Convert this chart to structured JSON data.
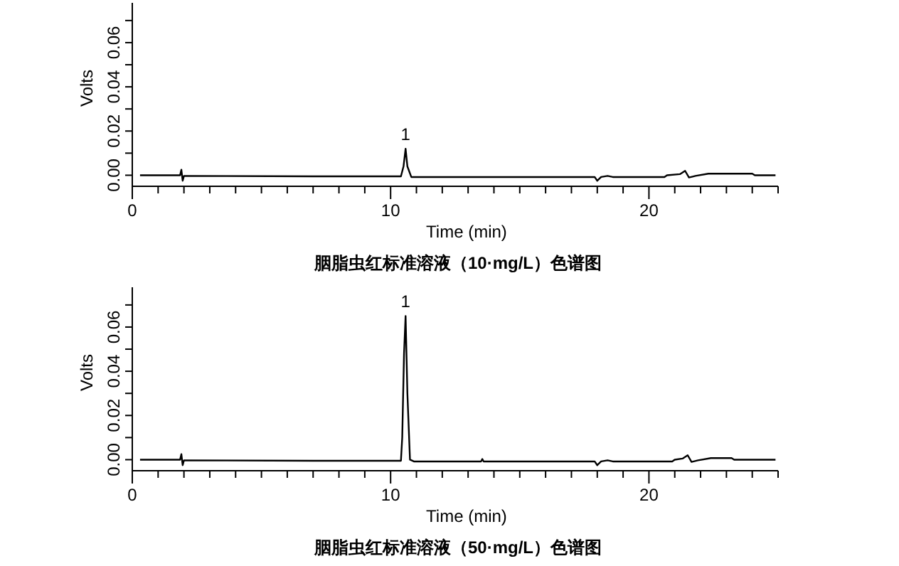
{
  "chart_data": [
    {
      "type": "line",
      "title": "胭脂虫红标准溶液（10·mg/L）色谱图",
      "xlabel": "Time (min)",
      "ylabel": "Volts",
      "series": [
        {
          "color": "#000000",
          "x": [
            0.3,
            1.85,
            1.9,
            1.95,
            2.0,
            7,
            10.4,
            10.5,
            10.58,
            10.65,
            10.8,
            17.9,
            18.0,
            18.15,
            18.4,
            18.6,
            20.6,
            20.7,
            21.2,
            21.4,
            21.55,
            21.8,
            22.3,
            24.0,
            24.1,
            24.9
          ],
          "values": [
            0,
            0,
            0.0025,
            -0.0025,
            -0.0003,
            -0.0005,
            -0.0005,
            0.004,
            0.012,
            0.004,
            -0.0008,
            -0.0008,
            -0.0025,
            -0.0008,
            -0.0003,
            -0.0008,
            -0.0008,
            0,
            0.0005,
            0.002,
            -0.001,
            -0.0003,
            0.0007,
            0.0007,
            0,
            0
          ]
        }
      ],
      "annotations": [
        {
          "text": "1",
          "x": 10.58,
          "y": 0.012
        }
      ],
      "xlim": [
        0,
        25
      ],
      "ylim": [
        -0.005,
        0.078
      ],
      "xticks": [
        0,
        {
          "value": 1,
          "label": null
        },
        {
          "value": 2,
          "label": null
        },
        {
          "value": 3,
          "label": null
        },
        {
          "value": 4,
          "label": null
        },
        {
          "value": 5,
          "label": null
        },
        {
          "value": 6,
          "label": null
        },
        {
          "value": 7,
          "label": null
        },
        {
          "value": 8,
          "label": null
        },
        {
          "value": 9,
          "label": null
        },
        10,
        {
          "value": 11,
          "label": null
        },
        {
          "value": 12,
          "label": null
        },
        {
          "value": 13,
          "label": null
        },
        {
          "value": 14,
          "label": null
        },
        {
          "value": 15,
          "label": null
        },
        {
          "value": 16,
          "label": null
        },
        {
          "value": 17,
          "label": null
        },
        {
          "value": 18,
          "label": null
        },
        {
          "value": 19,
          "label": null
        },
        20,
        {
          "value": 21,
          "label": null
        },
        {
          "value": 22,
          "label": null
        },
        {
          "value": 23,
          "label": null
        },
        {
          "value": 24,
          "label": null
        },
        {
          "value": 25,
          "label": null
        }
      ],
      "yticks": [
        {
          "value": 0,
          "label": "0.00"
        },
        {
          "value": 0.01,
          "label": null
        },
        {
          "value": 0.02,
          "label": "0.02"
        },
        {
          "value": 0.03,
          "label": null
        },
        {
          "value": 0.04,
          "label": "0.04"
        },
        {
          "value": 0.05,
          "label": null
        },
        {
          "value": 0.06,
          "label": "0.06"
        },
        {
          "value": 0.07,
          "label": null
        }
      ],
      "grid": false,
      "marker": "none",
      "line_style": "solid"
    },
    {
      "type": "line",
      "title": "胭脂虫红标准溶液（50·mg/L）色谱图",
      "xlabel": "Time (min)",
      "ylabel": "Volts",
      "series": [
        {
          "color": "#000000",
          "x": [
            0.3,
            1.85,
            1.9,
            1.95,
            2.0,
            7,
            10.4,
            10.45,
            10.52,
            10.58,
            10.65,
            10.75,
            10.9,
            13.5,
            13.55,
            13.6,
            17.9,
            18.0,
            18.15,
            18.4,
            18.6,
            20.9,
            21.0,
            21.3,
            21.5,
            21.65,
            21.9,
            22.4,
            23.2,
            23.3,
            24.9
          ],
          "values": [
            0,
            0,
            0.0025,
            -0.0025,
            -0.0003,
            -0.0005,
            -0.0005,
            0.01,
            0.048,
            0.065,
            0.03,
            0,
            -0.0008,
            -0.0008,
            0.0003,
            -0.0008,
            -0.0008,
            -0.0025,
            -0.0008,
            -0.0003,
            -0.0008,
            -0.0008,
            0,
            0.0005,
            0.002,
            -0.001,
            -0.0003,
            0.0007,
            0.0007,
            0,
            0
          ]
        }
      ],
      "annotations": [
        {
          "text": "1",
          "x": 10.58,
          "y": 0.065
        }
      ],
      "xlim": [
        0,
        25
      ],
      "ylim": [
        -0.005,
        0.078
      ],
      "xticks": [
        0,
        {
          "value": 1,
          "label": null
        },
        {
          "value": 2,
          "label": null
        },
        {
          "value": 3,
          "label": null
        },
        {
          "value": 4,
          "label": null
        },
        {
          "value": 5,
          "label": null
        },
        {
          "value": 6,
          "label": null
        },
        {
          "value": 7,
          "label": null
        },
        {
          "value": 8,
          "label": null
        },
        {
          "value": 9,
          "label": null
        },
        10,
        {
          "value": 11,
          "label": null
        },
        {
          "value": 12,
          "label": null
        },
        {
          "value": 13,
          "label": null
        },
        {
          "value": 14,
          "label": null
        },
        {
          "value": 15,
          "label": null
        },
        {
          "value": 16,
          "label": null
        },
        {
          "value": 17,
          "label": null
        },
        {
          "value": 18,
          "label": null
        },
        {
          "value": 19,
          "label": null
        },
        20,
        {
          "value": 21,
          "label": null
        },
        {
          "value": 22,
          "label": null
        },
        {
          "value": 23,
          "label": null
        },
        {
          "value": 24,
          "label": null
        },
        {
          "value": 25,
          "label": null
        }
      ],
      "yticks": [
        {
          "value": 0,
          "label": "0.00"
        },
        {
          "value": 0.01,
          "label": null
        },
        {
          "value": 0.02,
          "label": "0.02"
        },
        {
          "value": 0.03,
          "label": null
        },
        {
          "value": 0.04,
          "label": "0.04"
        },
        {
          "value": 0.05,
          "label": null
        },
        {
          "value": 0.06,
          "label": "0.06"
        },
        {
          "value": 0.07,
          "label": null
        }
      ],
      "grid": false,
      "marker": "none",
      "line_style": "solid"
    }
  ]
}
